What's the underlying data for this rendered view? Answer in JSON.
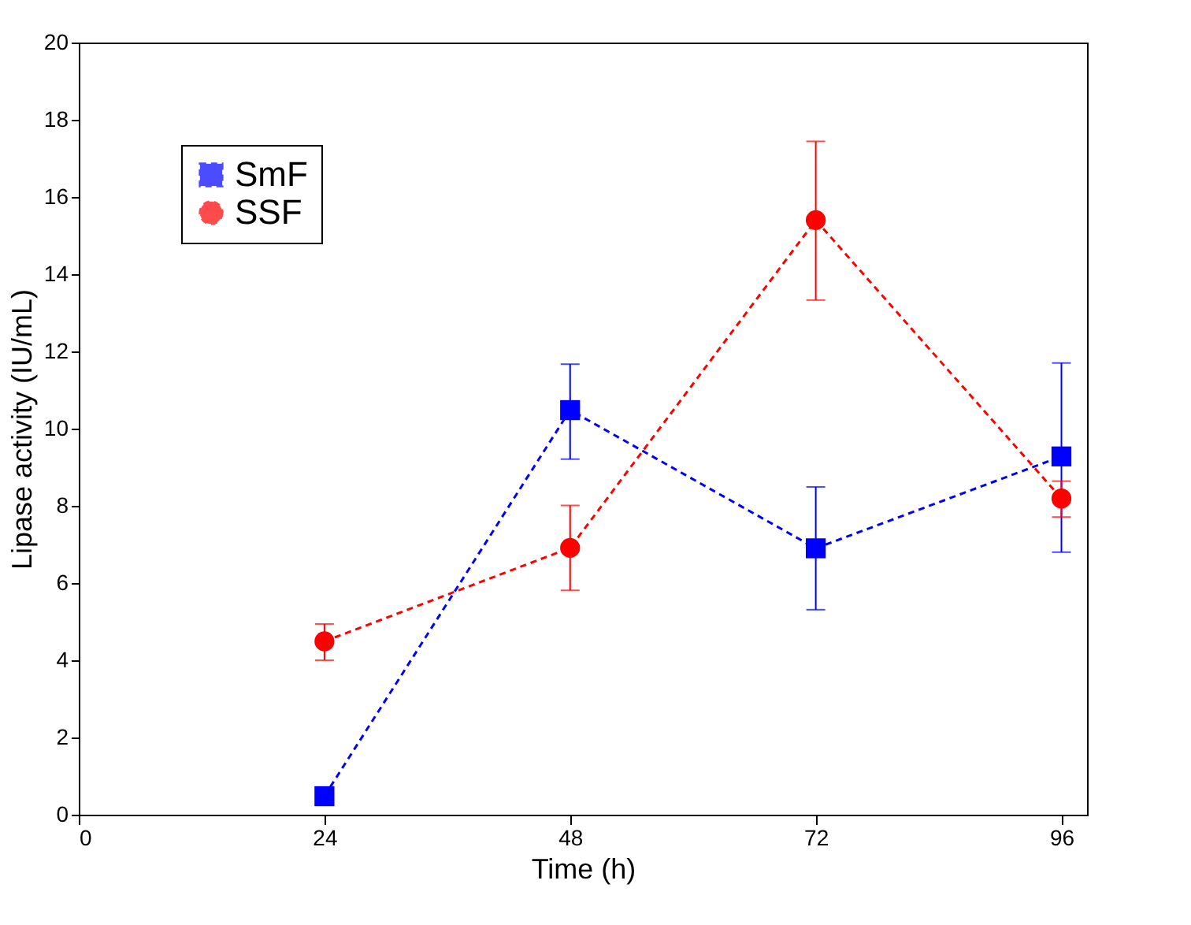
{
  "chart_data": {
    "type": "line",
    "xlabel": "Time (h)",
    "ylabel": "Lipase activity (IU/mL)",
    "x": [
      24,
      48,
      72,
      96
    ],
    "series": [
      {
        "name": "SmF",
        "color": "#0000ff",
        "marker": "square",
        "values": [
          0.48,
          10.48,
          6.9,
          9.28
        ],
        "errors": [
          null,
          [
            9.21,
            11.67
          ],
          [
            5.31,
            8.49
          ],
          [
            6.8,
            11.7
          ]
        ]
      },
      {
        "name": "SSF",
        "color": "#ff0000",
        "marker": "circle",
        "values": [
          4.49,
          6.91,
          15.4,
          8.19
        ],
        "errors": [
          [
            4.0,
            4.94
          ],
          [
            5.81,
            8.01
          ],
          [
            13.33,
            17.44
          ],
          [
            7.71,
            8.64
          ]
        ]
      }
    ],
    "xlim": [
      0,
      98.5
    ],
    "xticks": [
      0,
      24,
      48,
      72,
      96
    ],
    "ylim": [
      0,
      20
    ],
    "yticks": [
      0,
      2,
      4,
      6,
      8,
      10,
      12,
      14,
      16,
      18,
      20
    ],
    "grid": false,
    "legend": "top left",
    "line_style": "dashed"
  }
}
